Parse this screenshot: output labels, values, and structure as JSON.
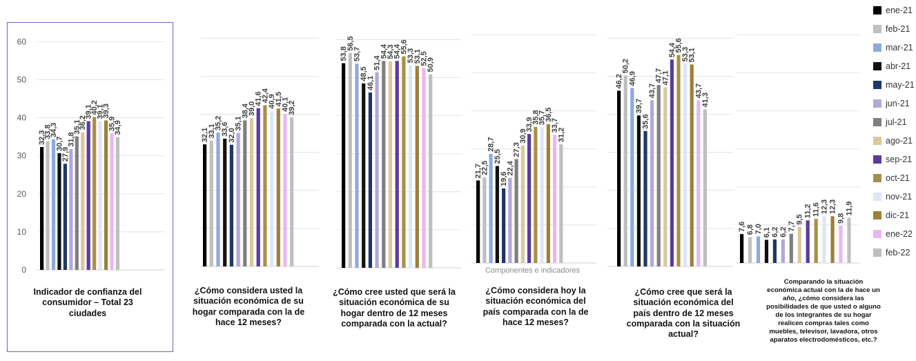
{
  "chart_data": {
    "type": "bar",
    "axis_title": "Componentes e indicadores",
    "ylim": [
      0,
      60
    ],
    "y_ticks": [
      0,
      10,
      20,
      30,
      40,
      50,
      60
    ],
    "grid": true,
    "legend_position": "right",
    "series_names": [
      "ene-21",
      "feb-21",
      "mar-21",
      "abr-21",
      "may-21",
      "jun-21",
      "jul-21",
      "ago-21",
      "sep-21",
      "oct-21",
      "nov-21",
      "dic-21",
      "ene-22",
      "feb-22"
    ],
    "series_colors": [
      "#000000",
      "#bfbfbf",
      "#8eaadb",
      "#111111",
      "#1f3864",
      "#b4a7d6",
      "#7f7f7f",
      "#d9c89b",
      "#5b3aa0",
      "#a88f49",
      "#dde6f5",
      "#9c8039",
      "#e9b7f0",
      "#bfbfbf"
    ],
    "panels": [
      {
        "caption": "Indicador de confianza del consumidor – Total 23 ciudades",
        "values": [
          32.3,
          33.8,
          34.3,
          30.7,
          27.9,
          31.8,
          35.1,
          36.2,
          39.1,
          40.2,
          39.1,
          39.3,
          35.9,
          34.9
        ]
      },
      {
        "caption": "¿Cómo considera usted la situación económica de su hogar comparada con la de hace 12 meses?",
        "values": [
          32.1,
          33.1,
          35.2,
          33.6,
          32.0,
          35.1,
          38.4,
          39.0,
          41.6,
          42.4,
          40.9,
          41.5,
          40.1,
          39.2
        ]
      },
      {
        "caption": "¿Cómo cree usted que será la situación económica de su hogar dentro de 12 meses comparada con la actual?",
        "values": [
          53.8,
          56.5,
          53.7,
          48.5,
          46.1,
          51.4,
          54.4,
          54.3,
          54.4,
          55.6,
          53.3,
          53.1,
          52.5,
          50.9
        ]
      },
      {
        "caption": "¿Cómo considera hoy la situación económica del país comparada con la de hace 12 meses?",
        "values": [
          21.7,
          22.5,
          28.7,
          25.5,
          19.6,
          22.4,
          27.3,
          30.9,
          33.9,
          35.8,
          35.7,
          36.5,
          33.7,
          31.2
        ]
      },
      {
        "caption": "¿Cómo cree que será la situación económica del país dentro de 12 meses comparada con la situación actual?",
        "values": [
          46.2,
          50.2,
          46.9,
          39.7,
          35.6,
          43.7,
          47.7,
          47.1,
          54.4,
          55.6,
          53.3,
          53.1,
          43.7,
          41.3
        ]
      },
      {
        "caption": "Comparando la situación económica actual con la de hace un año, ¿cómo considera las posibilidades de que usted o alguno de los integrantes de su hogar realicen compras tales como muebles, televisor, lavadora, otros aparatos electrodomésticos, etc.?",
        "values": [
          7.6,
          6.8,
          7.0,
          6.1,
          6.2,
          6.2,
          7.7,
          9.5,
          11.2,
          11.6,
          12.3,
          12.3,
          9.8,
          11.9
        ]
      }
    ]
  }
}
